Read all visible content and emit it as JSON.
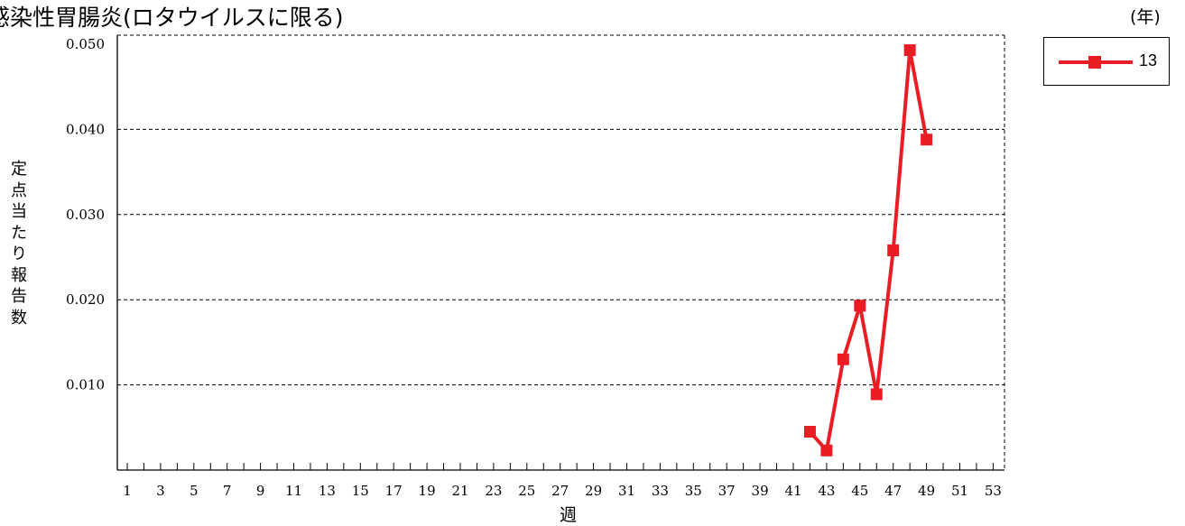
{
  "title": "感染性胃腸炎(ロタウイルスに限る)",
  "unit_label": "(年)",
  "chart_data": {
    "type": "line",
    "ylabel": "定点当たり報告数",
    "xlabel": "週",
    "ylim": [
      0,
      0.05
    ],
    "xlim": [
      1,
      53
    ],
    "yticks": [
      "0.010",
      "0.020",
      "0.030",
      "0.040",
      "0.050"
    ],
    "ytick_values": [
      0.01,
      0.02,
      0.03,
      0.04,
      0.05
    ],
    "xticks": [
      "1",
      "3",
      "5",
      "7",
      "9",
      "11",
      "13",
      "15",
      "17",
      "19",
      "21",
      "23",
      "25",
      "27",
      "29",
      "31",
      "33",
      "35",
      "37",
      "39",
      "41",
      "43",
      "45",
      "47",
      "49",
      "51",
      "53"
    ],
    "grid": "dashed horizontal",
    "legend_position": "top-right",
    "color": "#ea1d25",
    "series": [
      {
        "name": "13",
        "x": [
          42,
          43,
          44,
          45,
          46,
          47,
          48,
          49
        ],
        "values": [
          0.0045,
          0.0023,
          0.013,
          0.0193,
          0.0089,
          0.0258,
          0.0493,
          0.0388
        ]
      }
    ]
  }
}
